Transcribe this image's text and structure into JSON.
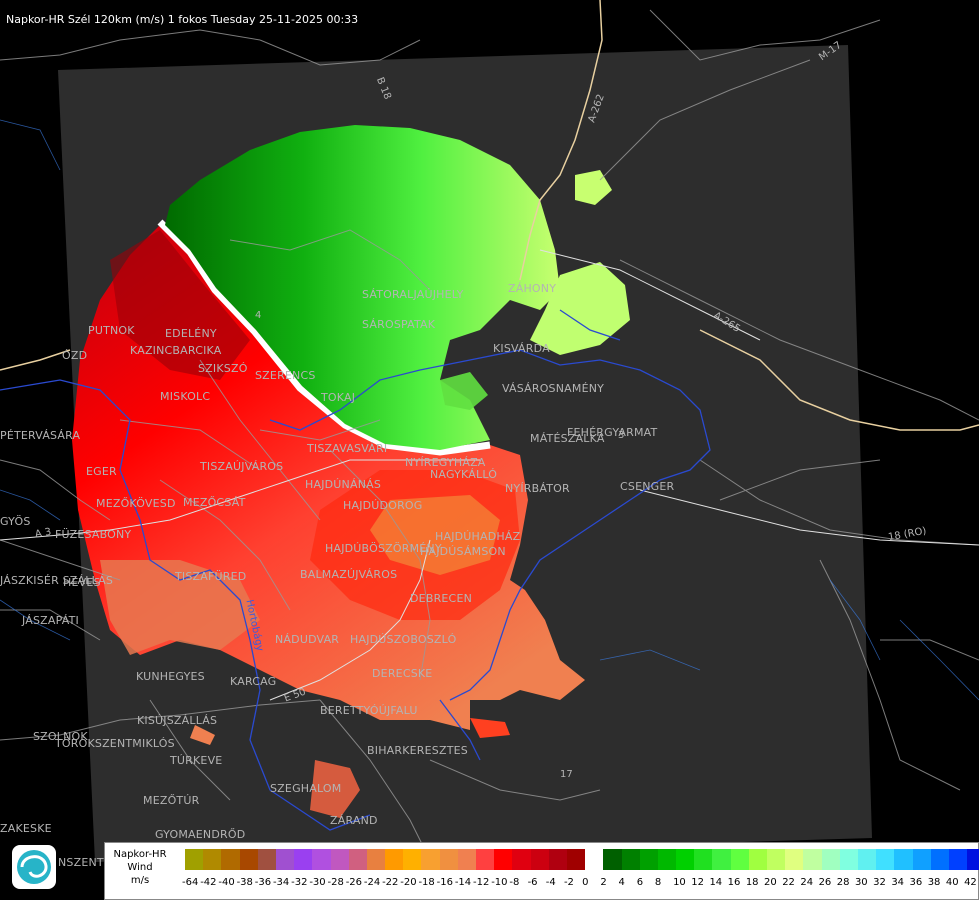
{
  "title": "Napkor-HR Szél 120km (m/s) 1 fokos Tuesday 25-11-2025 00:33",
  "places": {
    "putnok": "PUTNOK",
    "edeleny": "EDELÉNY",
    "kazincbarcika": "KAZINCBARCIKA",
    "szikszo": "SZIKSZÓ",
    "szerencs": "SZERENCS",
    "tokaj": "TOKAJ",
    "miskolc": "MISKOLC",
    "satoraljaujhely": "SÁTORALJAÚJHELY",
    "sarospatak": "SÁROSPATAK",
    "zahony": "ZÁHONY",
    "kisvarda": "KISVÁRDA",
    "vasarosnameny": "VÁSÁROSNAMÉNY",
    "mateszalka": "MÁTÉSZALKA",
    "fehergyarmat": "FEHÉRGYARMAT",
    "csenger": "CSENGER",
    "nyirbator": "NYÍRBÁTOR",
    "nagykallo": "NAGYKÁLLÓ",
    "nyiregyhaza": "NYÍREGYHÁZA",
    "tiszavasvari": "TISZAVASVÁRI",
    "tiszaujvaros": "TISZAÚJVÁROS",
    "hajdunanas": "HAJDÚNÁNÁS",
    "hajdudorog": "HAJDÚDOROG",
    "hajduboszormeny": "HAJDÚBÖSZÖRMÉNY",
    "hajduhadhaz": "HAJDÚHADHÁZ",
    "hajdusamson": "HAJDÚSÁMSON",
    "debrecen": "DEBRECEN",
    "hajduszoboszlo": "HAJDÚSZOBOSZLÓ",
    "nadudvar": "NÁDUDVAR",
    "derecske": "DERECSKE",
    "berettyoujfalu": "BERETTYÓÚJFALU",
    "biharkeresztes": "BIHARKERESZTES",
    "eger": "EGER",
    "mezokovesd": "MEZŐKÖVESD",
    "mezocsat": "MEZŐCSÁT",
    "fuzesabony": "FÜZESABONY",
    "heves": "HEVES",
    "tiszafured": "TISZAFÜRED",
    "balmazujvaros": "BALMAZÚJVÁROS",
    "kunhegyes": "KUNHEGYES",
    "karcag": "KARCAG",
    "kisujszallas": "KISÚJSZÁLLÁS",
    "turkeve": "TÚRKEVE",
    "mezotur": "MEZŐTÚR",
    "szeghalom": "SZEGHALOM",
    "gyomaendrod": "GYOMAENDRŐD",
    "szolnok": "SZOLNOK",
    "torokszentmiklos": "TÖRÖKSZENTMIKLÓS",
    "jaszapati": "JÁSZAPÁTI",
    "jaszkiserszallas": "JÁSZKISÉR SZÁLLÁS",
    "petervasara": "PÉTERVÁSÁRA",
    "ozd": "ÓZD",
    "gyongyos": "GYÖS",
    "zsakeske": "ZAKESKE",
    "nszentm": "NSZENTM",
    "zarand": "ZÁRAND"
  },
  "roads": {
    "b18": "B 18",
    "a262": "A-262",
    "m17": "M-17",
    "a265": "A-265",
    "ro18": "18 (RO)",
    "a3": "A 3",
    "e50": "E 50",
    "r17": "17",
    "r4": "4",
    "r3": "3",
    "hortobagy": "Hortobágy"
  },
  "legend": {
    "line1": "Napkor-HR",
    "line2": "Wind",
    "line3": "m/s",
    "values": [
      "-64",
      "-42",
      "-40",
      "-38",
      "-36",
      "-34",
      "-32",
      "-30",
      "-28",
      "-26",
      "-24",
      "-22",
      "-20",
      "-18",
      "-16",
      "-14",
      "-12",
      "-10",
      "-8",
      "-6",
      "-4",
      "-2",
      "0",
      "2",
      "4",
      "6",
      "8",
      "10",
      "12",
      "14",
      "16",
      "18",
      "20",
      "22",
      "24",
      "26",
      "28",
      "30",
      "32",
      "34",
      "36",
      "38",
      "40",
      "42"
    ],
    "colors": [
      "#a0a000",
      "#b08a00",
      "#b06a00",
      "#a84800",
      "#a05040",
      "#a050d0",
      "#9a40f0",
      "#b050e0",
      "#c058c0",
      "#d06080",
      "#e88040",
      "#ff9a00",
      "#ffb000",
      "#f8a030",
      "#f09040",
      "#f08050",
      "#ff4040",
      "#ff0000",
      "#e00010",
      "#cc0010",
      "#b00010",
      "#a00000",
      "#ffffff",
      "#006000",
      "#008000",
      "#00a000",
      "#00b800",
      "#00d000",
      "#20e020",
      "#40f040",
      "#60ff40",
      "#a0ff40",
      "#c0ff60",
      "#e0ff80",
      "#c0ffa0",
      "#a0ffc0",
      "#80ffe0",
      "#60f0f0",
      "#40e0ff",
      "#20c0ff",
      "#10a0ff",
      "#0070ff",
      "#0040ff",
      "#0010e0"
    ]
  }
}
